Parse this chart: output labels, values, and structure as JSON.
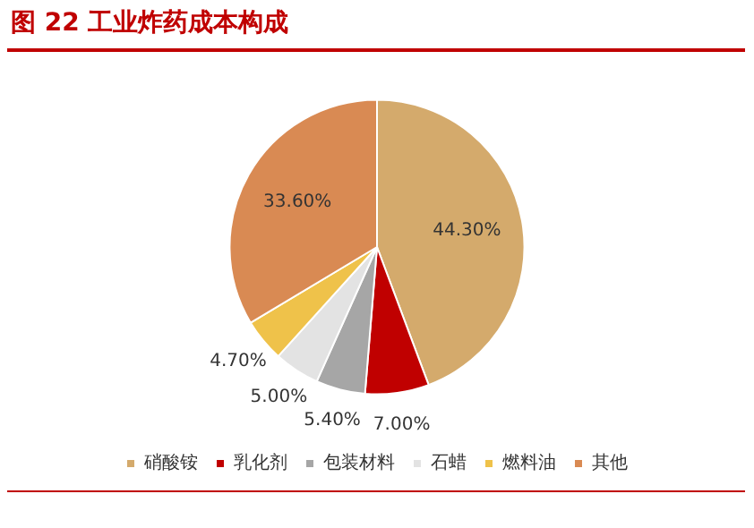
{
  "chart_data": {
    "type": "pie",
    "title": "图 22 工业炸药成本构成",
    "categories": [
      "硝酸铵",
      "乳化剂",
      "包装材料",
      "石蜡",
      "燃料油",
      "其他"
    ],
    "values": [
      44.3,
      7.0,
      5.4,
      5.0,
      4.7,
      33.6
    ],
    "value_labels": [
      "44.30%",
      "7.00%",
      "5.40%",
      "5.00%",
      "4.70%",
      "33.60%"
    ],
    "colors": [
      "#d4aa6c",
      "#c00000",
      "#a6a6a6",
      "#e3e3e3",
      "#efc24a",
      "#d98a53"
    ],
    "legend": "bottom"
  }
}
